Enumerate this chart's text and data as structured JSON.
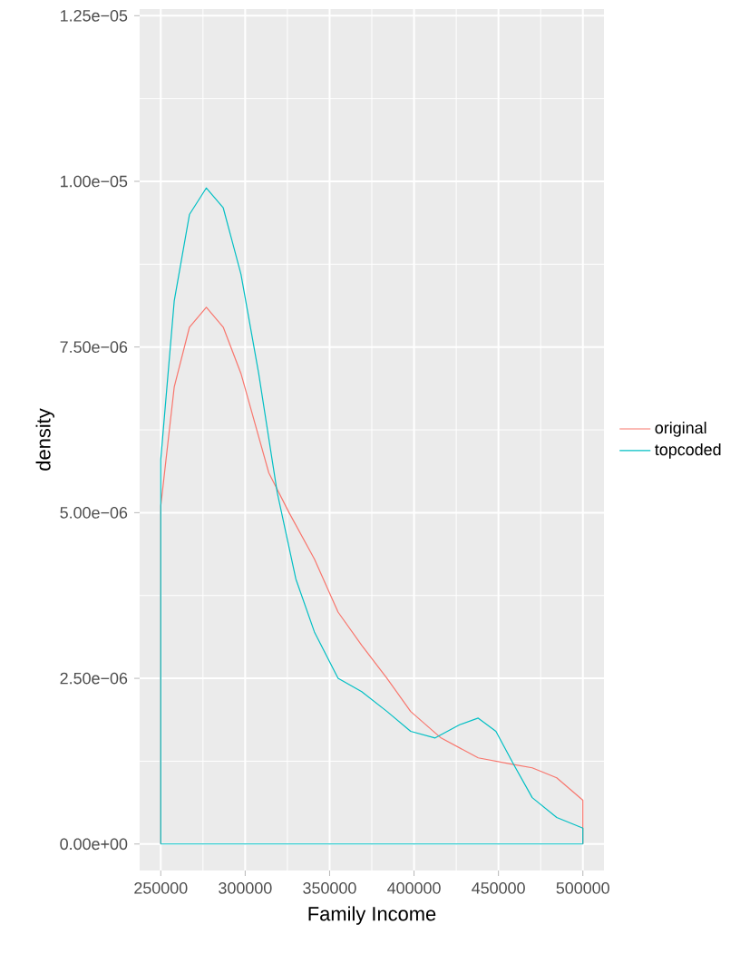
{
  "chart_data": {
    "type": "line",
    "xlabel": "Family Income",
    "ylabel": "density",
    "legend": "right",
    "grid": true,
    "marker": "none",
    "line_style": "solid",
    "xlim": [
      237500,
      512500
    ],
    "xticks": [
      250000,
      300000,
      350000,
      400000,
      450000,
      500000
    ],
    "ylim": [
      -4e-07,
      1.26e-05
    ],
    "yticks": [
      {
        "value": 0,
        "label": "0.00e+00"
      },
      {
        "value": 2.5e-06,
        "label": "2.50e−06"
      },
      {
        "value": 5e-06,
        "label": "5.00e−06"
      },
      {
        "value": 7.5e-06,
        "label": "7.50e−06"
      },
      {
        "value": 1e-05,
        "label": "1.00e−05"
      },
      {
        "value": 1.25e-05,
        "label": "1.25e−05"
      }
    ],
    "ref_lines": [
      {
        "axis": "y",
        "value": 0,
        "color": "#00BFC4"
      }
    ],
    "series": [
      {
        "name": "original",
        "color": "#F8766D",
        "x": [
          250000,
          250000,
          258000,
          267000,
          277000,
          287000,
          297500,
          314000,
          326000,
          341000,
          355000,
          369000,
          384000,
          398000,
          416000,
          438000,
          459000,
          470000,
          484500,
          500000,
          500000
        ],
        "values": [
          0,
          5.1e-06,
          6.9e-06,
          7.8e-06,
          8.1e-06,
          7.8e-06,
          7.1e-06,
          5.6e-06,
          5e-06,
          4.3e-06,
          3.5e-06,
          3e-06,
          2.5e-06,
          2e-06,
          1.6e-06,
          1.3e-06,
          1.2e-06,
          1.15e-06,
          1e-06,
          6.6e-07,
          0
        ]
      },
      {
        "name": "topcoded",
        "color": "#00BFC4",
        "x": [
          250000,
          250000,
          258000,
          267000,
          277000,
          287000,
          297500,
          308000,
          319000,
          330000,
          341000,
          355000,
          369000,
          384000,
          398000,
          412500,
          427000,
          438000,
          448500,
          459000,
          470000,
          484500,
          500000,
          500000
        ],
        "values": [
          0,
          5.8e-06,
          8.2e-06,
          9.5e-06,
          9.9e-06,
          9.6e-06,
          8.6e-06,
          7.1e-06,
          5.3e-06,
          4e-06,
          3.2e-06,
          2.5e-06,
          2.3e-06,
          2e-06,
          1.7e-06,
          1.6e-06,
          1.8e-06,
          1.9e-06,
          1.7e-06,
          1.2e-06,
          7e-07,
          4e-07,
          2.4e-07,
          0
        ]
      }
    ]
  }
}
